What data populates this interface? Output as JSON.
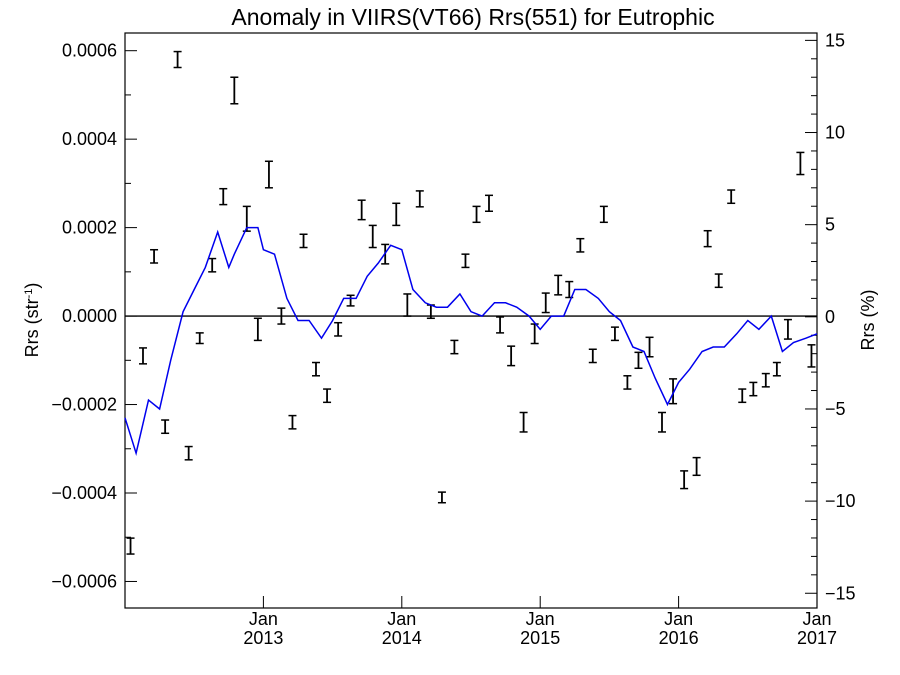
{
  "chart_data": {
    "type": "line",
    "title": "Anomaly in VIIRS(VT66) Rrs(551) for Eutrophic",
    "ylabel_left": {
      "base": "Rrs (str",
      "sup": "-1",
      "tail": ")"
    },
    "ylabel_right": "Rrs (%)",
    "xlim": [
      2012.0,
      2017.0
    ],
    "ylim_left": [
      -0.00066,
      0.00064
    ],
    "ylim_right": [
      -15.8,
      15.4
    ],
    "grid": false,
    "zero_line": true,
    "left_ticks": [
      {
        "value": 0.0006,
        "label": "0.0006"
      },
      {
        "value": 0.0004,
        "label": "0.0004"
      },
      {
        "value": 0.0002,
        "label": "0.0002"
      },
      {
        "value": 0.0,
        "label": "0.0000"
      },
      {
        "value": -0.0002,
        "label": "−0.0002"
      },
      {
        "value": -0.0004,
        "label": "−0.0004"
      },
      {
        "value": -0.0006,
        "label": "−0.0006"
      }
    ],
    "right_ticks": [
      {
        "value": 15,
        "label": "15"
      },
      {
        "value": 10,
        "label": "10"
      },
      {
        "value": 5,
        "label": "5"
      },
      {
        "value": 0,
        "label": "0"
      },
      {
        "value": -5,
        "label": "−5"
      },
      {
        "value": -10,
        "label": "−10"
      },
      {
        "value": -15,
        "label": "−15"
      }
    ],
    "x_ticks": [
      {
        "value": 2013.0,
        "month": "Jan",
        "year": "2013"
      },
      {
        "value": 2014.0,
        "month": "Jan",
        "year": "2014"
      },
      {
        "value": 2015.0,
        "month": "Jan",
        "year": "2015"
      },
      {
        "value": 2016.0,
        "month": "Jan",
        "year": "2016"
      },
      {
        "value": 2017.0,
        "month": "Jan",
        "year": "2017"
      }
    ],
    "series": [
      {
        "type": "errorbar",
        "axis": "left",
        "color": "#000000",
        "x": [
          2012.04,
          2012.13,
          2012.21,
          2012.29,
          2012.38,
          2012.46,
          2012.54,
          2012.63,
          2012.71,
          2012.79,
          2012.88,
          2012.96,
          2013.04,
          2013.13,
          2013.21,
          2013.29,
          2013.38,
          2013.46,
          2013.54,
          2013.63,
          2013.71,
          2013.79,
          2013.88,
          2013.96,
          2014.04,
          2014.13,
          2014.21,
          2014.29,
          2014.38,
          2014.46,
          2014.54,
          2014.63,
          2014.71,
          2014.79,
          2014.88,
          2014.96,
          2015.04,
          2015.13,
          2015.21,
          2015.29,
          2015.38,
          2015.46,
          2015.54,
          2015.63,
          2015.71,
          2015.79,
          2015.88,
          2015.96,
          2016.04,
          2016.13,
          2016.21,
          2016.29,
          2016.38,
          2016.46,
          2016.54,
          2016.63,
          2016.71,
          2016.79,
          2016.88,
          2016.96
        ],
        "y": [
          -0.00052,
          -9e-05,
          0.000135,
          -0.00025,
          0.00058,
          -0.00031,
          -5e-05,
          0.000115,
          0.00027,
          0.00051,
          0.00022,
          -3e-05,
          0.00032,
          0.0,
          -0.00024,
          0.00017,
          -0.00012,
          -0.00018,
          -3e-05,
          3.5e-05,
          0.00024,
          0.00018,
          0.00014,
          0.00023,
          2.5e-05,
          0.000265,
          1e-05,
          -0.00041,
          -7e-05,
          0.000125,
          0.00023,
          0.000255,
          -2e-05,
          -9e-05,
          -0.00024,
          -4e-05,
          3e-05,
          7e-05,
          6e-05,
          0.00016,
          -9e-05,
          0.00023,
          -4e-05,
          -0.00015,
          -0.0001,
          -7e-05,
          -0.00024,
          -0.00017,
          -0.00037,
          -0.00034,
          0.000175,
          8e-05,
          0.00027,
          -0.00018,
          -0.000165,
          -0.000145,
          -0.00012,
          -3e-05,
          0.000345,
          -9e-05
        ],
        "err": [
          1.8e-05,
          1.8e-05,
          1.5e-05,
          1.5e-05,
          1.8e-05,
          1.5e-05,
          1.2e-05,
          1.5e-05,
          1.8e-05,
          3e-05,
          2.8e-05,
          2.5e-05,
          3e-05,
          1.8e-05,
          1.5e-05,
          1.5e-05,
          1.5e-05,
          1.5e-05,
          1.5e-05,
          1.2e-05,
          2.2e-05,
          2.5e-05,
          2.2e-05,
          2.5e-05,
          2.5e-05,
          1.8e-05,
          1.5e-05,
          1.2e-05,
          1.5e-05,
          1.5e-05,
          1.8e-05,
          1.8e-05,
          1.8e-05,
          2.2e-05,
          2.2e-05,
          2.2e-05,
          2.2e-05,
          2.2e-05,
          1.8e-05,
          1.5e-05,
          1.5e-05,
          1.8e-05,
          1.5e-05,
          1.5e-05,
          1.8e-05,
          2.2e-05,
          2.2e-05,
          2.8e-05,
          2e-05,
          2e-05,
          1.8e-05,
          1.5e-05,
          1.5e-05,
          1.5e-05,
          1.5e-05,
          1.5e-05,
          1.5e-05,
          2.2e-05,
          2.5e-05,
          2.5e-05
        ]
      },
      {
        "type": "line",
        "axis": "left",
        "color": "#0000ee",
        "x": [
          2012.0,
          2012.08,
          2012.17,
          2012.25,
          2012.33,
          2012.42,
          2012.5,
          2012.58,
          2012.67,
          2012.75,
          2012.79,
          2012.88,
          2012.96,
          2013.0,
          2013.08,
          2013.17,
          2013.25,
          2013.33,
          2013.42,
          2013.5,
          2013.58,
          2013.67,
          2013.75,
          2013.83,
          2013.92,
          2014.0,
          2014.08,
          2014.17,
          2014.25,
          2014.33,
          2014.42,
          2014.5,
          2014.58,
          2014.67,
          2014.75,
          2014.83,
          2014.92,
          2015.0,
          2015.08,
          2015.17,
          2015.25,
          2015.33,
          2015.42,
          2015.5,
          2015.58,
          2015.67,
          2015.75,
          2015.83,
          2015.92,
          2016.0,
          2016.08,
          2016.17,
          2016.25,
          2016.33,
          2016.42,
          2016.5,
          2016.58,
          2016.67,
          2016.75,
          2016.83,
          2016.92,
          2017.0
        ],
        "y": [
          -0.00023,
          -0.00031,
          -0.00019,
          -0.00021,
          -0.0001,
          1e-05,
          6e-05,
          0.00011,
          0.00019,
          0.00011,
          0.00014,
          0.0002,
          0.0002,
          0.00015,
          0.00014,
          4e-05,
          -1e-05,
          -1e-05,
          -5e-05,
          -1e-05,
          4e-05,
          4e-05,
          9e-05,
          0.00012,
          0.00016,
          0.00015,
          6e-05,
          3e-05,
          2e-05,
          2e-05,
          5e-05,
          1e-05,
          0.0,
          3e-05,
          3e-05,
          2e-05,
          0.0,
          -3e-05,
          0.0,
          0.0,
          6e-05,
          6e-05,
          4e-05,
          1e-05,
          -1e-05,
          -7e-05,
          -8e-05,
          -0.00014,
          -0.0002,
          -0.00015,
          -0.00012,
          -8e-05,
          -7e-05,
          -7e-05,
          -4e-05,
          -1e-05,
          -3e-05,
          0.0,
          -8e-05,
          -6e-05,
          -5e-05,
          -4e-05
        ]
      }
    ]
  }
}
